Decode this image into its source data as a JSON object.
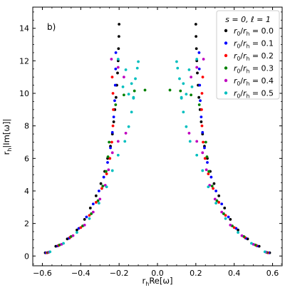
{
  "chart_data": {
    "type": "scatter",
    "panel_label": "b)",
    "xlabel_parts": {
      "pre": "r",
      "sub": "h",
      "post": "Re[ω]"
    },
    "ylabel_parts": {
      "pre": "r",
      "sub": "h",
      "post": "|Im[ω]|"
    },
    "xlim": [
      -0.65,
      0.65
    ],
    "ylim": [
      -0.6,
      15.3
    ],
    "xticks": [
      -0.6,
      -0.4,
      -0.2,
      0.0,
      0.2,
      0.4,
      0.6
    ],
    "xtick_labels": [
      "−0.6",
      "−0.4",
      "−0.2",
      "0.0",
      "0.2",
      "0.4",
      "0.6"
    ],
    "yticks": [
      0,
      2,
      4,
      6,
      8,
      10,
      12,
      14
    ],
    "ytick_labels": [
      "0",
      "2",
      "4",
      "6",
      "8",
      "10",
      "12",
      "14"
    ],
    "legend": {
      "title": "s = 0, ℓ = 1",
      "placement": "top-right"
    },
    "series": [
      {
        "name": "r0/rh = 0.0",
        "label_parts": {
          "a": "r",
          "a_sub": "0",
          "b": "r",
          "b_sub": "h",
          "value": "= 0.0"
        },
        "color": "#000000",
        "x": [
          0.585,
          0.53,
          0.47,
          0.42,
          0.38,
          0.35,
          0.32,
          0.295,
          0.275,
          0.26,
          0.245,
          0.235,
          0.228,
          0.222,
          0.216,
          0.212,
          0.208,
          0.205,
          0.203,
          0.201,
          0.2
        ],
        "y": [
          0.2,
          0.6,
          1.05,
          1.6,
          2.25,
          2.95,
          3.7,
          4.45,
          5.2,
          6.0,
          6.75,
          7.5,
          8.25,
          9.0,
          9.75,
          10.5,
          11.25,
          12.0,
          12.75,
          13.5,
          14.25
        ]
      },
      {
        "name": "r0/rh = 0.1",
        "label_parts": {
          "a": "r",
          "a_sub": "0",
          "b": "r",
          "b_sub": "h",
          "value": "= 0.1"
        },
        "color": "#0000ff",
        "x": [
          0.58,
          0.52,
          0.46,
          0.41,
          0.37,
          0.335,
          0.305,
          0.28,
          0.26,
          0.245,
          0.235,
          0.228,
          0.223,
          0.22,
          0.218,
          0.217
        ],
        "y": [
          0.2,
          0.62,
          1.1,
          1.7,
          2.4,
          3.2,
          4.0,
          4.85,
          5.75,
          6.65,
          7.6,
          8.55,
          9.55,
          10.5,
          11.5,
          12.5
        ]
      },
      {
        "name": "r0/rh = 0.2",
        "label_parts": {
          "a": "r",
          "a_sub": "0",
          "b": "r",
          "b_sub": "h",
          "value": "= 0.2"
        },
        "color": "#ff0000",
        "x": [
          0.575,
          0.515,
          0.455,
          0.4,
          0.355,
          0.32,
          0.29,
          0.265,
          0.248,
          0.238,
          0.232,
          0.23,
          0.232,
          0.236
        ],
        "y": [
          0.2,
          0.65,
          1.15,
          1.75,
          2.5,
          3.3,
          4.15,
          5.05,
          6.0,
          7.0,
          8.0,
          9.0,
          10.0,
          11.0
        ]
      },
      {
        "name": "r0/rh = 0.3",
        "label_parts": {
          "a": "r",
          "a_sub": "0",
          "b": "r",
          "b_sub": "h",
          "value": "= 0.3"
        },
        "color": "#008000",
        "x": [
          0.57,
          0.51,
          0.45,
          0.39,
          0.345,
          0.31,
          0.285,
          0.268,
          0.258,
          0.252,
          0.218,
          0.175,
          0.12,
          0.065
        ],
        "y": [
          0.22,
          0.68,
          1.2,
          1.85,
          2.6,
          3.4,
          4.3,
          5.2,
          6.1,
          7.0,
          9.3,
          9.9,
          10.15,
          10.2
        ]
      },
      {
        "name": "r0/rh = 0.4",
        "label_parts": {
          "a": "r",
          "a_sub": "0",
          "b": "r",
          "b_sub": "h",
          "value": "= 0.4"
        },
        "color": "#bf00bf",
        "x": [
          0.565,
          0.5,
          0.44,
          0.38,
          0.335,
          0.3,
          0.272,
          0.255,
          0.235,
          0.205,
          0.165,
          0.175,
          0.205,
          0.24
        ],
        "y": [
          0.24,
          0.72,
          1.25,
          1.9,
          2.7,
          3.5,
          4.35,
          5.3,
          6.35,
          7.05,
          7.55,
          11.0,
          11.6,
          12.1
        ]
      },
      {
        "name": "r0/rh = 0.5",
        "label_parts": {
          "a": "r",
          "a_sub": "0",
          "b": "r",
          "b_sub": "h",
          "value": "= 0.5"
        },
        "color": "#00bfbf",
        "x": [
          0.56,
          0.49,
          0.42,
          0.355,
          0.305,
          0.265,
          0.235,
          0.205,
          0.17,
          0.15,
          0.135,
          0.125,
          0.135,
          0.165,
          0.205,
          0.18,
          0.15,
          0.125,
          0.115,
          0.105,
          0.1
        ],
        "y": [
          0.26,
          0.78,
          1.45,
          2.3,
          3.25,
          4.25,
          5.25,
          6.2,
          7.05,
          7.95,
          8.85,
          9.7,
          10.6,
          11.45,
          12.1,
          10.4,
          9.95,
          9.75,
          10.9,
          11.55,
          11.95
        ]
      }
    ],
    "symmetric_about_zero": true,
    "grid": false
  }
}
